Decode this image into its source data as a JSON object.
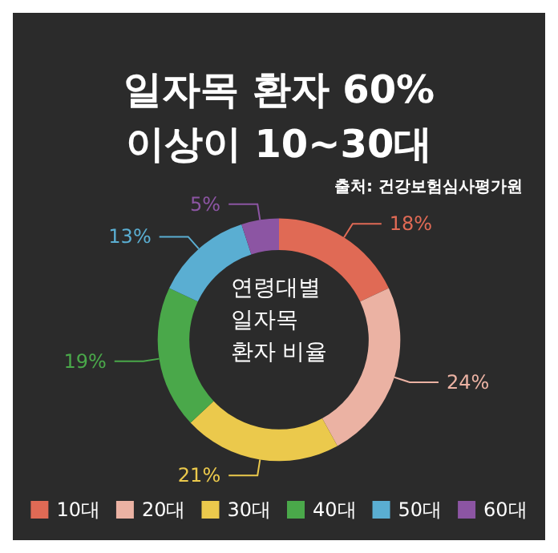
{
  "chart_data": {
    "type": "donut",
    "title": "일자목 환자 60%\n이상이 10~30대",
    "annotations": [
      "출처: 건강보험심사평가원",
      "연령대별\n일자목\n환자 비율"
    ],
    "categories": [
      "10대",
      "20대",
      "30대",
      "40대",
      "50대",
      "60대"
    ],
    "values": [
      18,
      24,
      21,
      19,
      13,
      5
    ],
    "value_labels": [
      "18%",
      "24%",
      "21%",
      "19%",
      "13%",
      "5%"
    ],
    "colors": [
      "#e06a55",
      "#ebb2a3",
      "#ebc94c",
      "#4aa84a",
      "#5aaed2",
      "#8c55a3"
    ],
    "legend": "bottom"
  }
}
